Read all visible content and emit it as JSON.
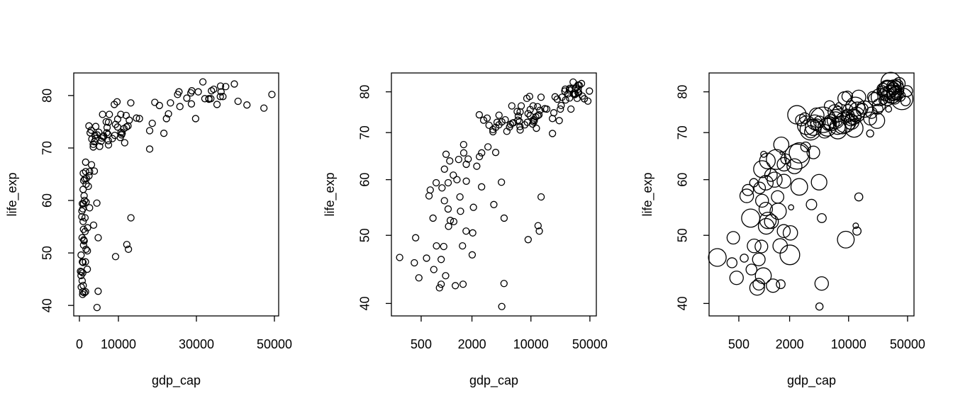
{
  "chart_data": [
    {
      "type": "scatter",
      "x_label": "gdp_cap",
      "y_label": "life_exp",
      "x_scale": "linear",
      "y_scale": "linear",
      "color": "#000000",
      "xlim": [
        -1455,
        51091
      ],
      "ylim": [
        38.0,
        84.3
      ],
      "xticks": [
        0,
        10000,
        30000,
        50000
      ],
      "yticks": [
        40,
        50,
        60,
        70,
        80
      ],
      "x": [
        975,
        5937,
        6223,
        4797,
        12779,
        34435,
        36126,
        29796,
        1391,
        33693,
        1441,
        3822,
        7446,
        12570,
        9066,
        10681,
        1217,
        430,
        1714,
        2042,
        36319,
        706,
        1704,
        13172,
        4959,
        7007,
        986,
        278,
        3633,
        9645,
        1545,
        14619,
        8948,
        22833,
        35278,
        2082,
        6025,
        6873,
        5581,
        5728,
        12154,
        641,
        691,
        33207,
        30470,
        13206,
        753,
        32170,
        1328,
        27538,
        5186,
        943,
        579,
        1202,
        3548,
        39725,
        18009,
        36181,
        2452,
        3541,
        11606,
        4471,
        40676,
        25523,
        28570,
        7321,
        31656,
        4519,
        1463,
        1593,
        23348,
        47307,
        10461,
        1569,
        415,
        12057,
        1045,
        759,
        12452,
        1043,
        1803,
        10957,
        11978,
        3096,
        9254,
        3820,
        824,
        944,
        4811,
        1091,
        36798,
        25185,
        2749,
        620,
        2014,
        49357,
        22316,
        2606,
        9809,
        4173,
        7409,
        3190,
        15390,
        20510,
        19329,
        7670,
        10808,
        863,
        1598,
        21655,
        1712,
        9787,
        863,
        18678,
        25768,
        926,
        9270,
        28821,
        3970,
        2602,
        4513,
        33860,
        37506,
        4185,
        28718,
        1107,
        7458,
        883,
        18009,
        7093,
        8458,
        1056,
        33203,
        42952,
        10611,
        11416,
        2442,
        3025,
        2281,
        1271,
        470
      ],
      "values": [
        43.8,
        76.4,
        72.3,
        42.7,
        75.3,
        81.2,
        79.8,
        75.6,
        64.1,
        79.4,
        56.7,
        65.6,
        74.9,
        50.7,
        72.4,
        73.0,
        52.3,
        49.6,
        59.7,
        50.4,
        80.7,
        44.7,
        50.7,
        78.6,
        73.0,
        72.9,
        65.2,
        46.5,
        55.3,
        78.8,
        48.3,
        75.7,
        78.3,
        76.5,
        78.3,
        54.8,
        72.2,
        75.0,
        71.3,
        71.9,
        51.6,
        58.0,
        52.9,
        79.3,
        80.7,
        56.7,
        59.4,
        79.4,
        60.0,
        79.5,
        70.3,
        56.0,
        46.4,
        60.9,
        70.2,
        82.2,
        73.3,
        81.8,
        64.7,
        70.7,
        71.0,
        59.5,
        78.9,
        80.7,
        80.5,
        72.6,
        82.6,
        72.5,
        54.1,
        67.3,
        78.6,
        77.6,
        72.0,
        42.6,
        45.7,
        74.0,
        59.4,
        48.3,
        74.2,
        54.5,
        64.2,
        72.8,
        76.2,
        66.8,
        74.5,
        71.2,
        42.1,
        62.1,
        52.9,
        63.8,
        79.8,
        80.2,
        72.9,
        56.9,
        46.9,
        80.2,
        75.6,
        65.5,
        75.5,
        71.8,
        71.4,
        71.7,
        75.6,
        78.1,
        78.7,
        76.4,
        72.5,
        46.2,
        65.5,
        72.8,
        63.1,
        74.0,
        42.6,
        74.7,
        77.9,
        48.2,
        49.3,
        80.9,
        72.4,
        58.6,
        39.6,
        80.9,
        81.7,
        74.1,
        78.4,
        52.5,
        70.6,
        58.4,
        69.8,
        73.9,
        71.8,
        51.5,
        79.4,
        78.2,
        76.4,
        73.7,
        74.2,
        73.4,
        62.7,
        42.4,
        43.5
      ]
    },
    {
      "type": "scatter",
      "x_label": "gdp_cap",
      "y_label": "life_exp",
      "x_scale": "log",
      "y_scale": "log",
      "color": "#000000",
      "xlim": [
        222,
        59600
      ],
      "ylim": [
        38.4,
        85.1
      ],
      "xticks": [
        500,
        2000,
        10000,
        50000
      ],
      "yticks": [
        40,
        50,
        60,
        70,
        80
      ],
      "x": [
        975,
        5937,
        6223,
        4797,
        12779,
        34435,
        36126,
        29796,
        1391,
        33693,
        1441,
        3822,
        7446,
        12570,
        9066,
        10681,
        1217,
        430,
        1714,
        2042,
        36319,
        706,
        1704,
        13172,
        4959,
        7007,
        986,
        278,
        3633,
        9645,
        1545,
        14619,
        8948,
        22833,
        35278,
        2082,
        6025,
        6873,
        5581,
        5728,
        12154,
        641,
        691,
        33207,
        30470,
        13206,
        753,
        32170,
        1328,
        27538,
        5186,
        943,
        579,
        1202,
        3548,
        39725,
        18009,
        36181,
        2452,
        3541,
        11606,
        4471,
        40676,
        25523,
        28570,
        7321,
        31656,
        4519,
        1463,
        1593,
        23348,
        47307,
        10461,
        1569,
        415,
        12057,
        1045,
        759,
        12452,
        1043,
        1803,
        10957,
        11978,
        3096,
        9254,
        3820,
        824,
        944,
        4811,
        1091,
        36798,
        25185,
        2749,
        620,
        2014,
        49357,
        22316,
        2606,
        9809,
        4173,
        7409,
        3190,
        15390,
        20510,
        19329,
        7670,
        10808,
        863,
        1598,
        21655,
        1712,
        9787,
        863,
        18678,
        25768,
        926,
        9270,
        28821,
        3970,
        2602,
        4513,
        33860,
        37506,
        4185,
        28718,
        1107,
        7458,
        883,
        18009,
        7093,
        8458,
        1056,
        33203,
        42952,
        10611,
        11416,
        2442,
        3025,
        2281,
        1271,
        470
      ],
      "values": [
        43.8,
        76.4,
        72.3,
        42.7,
        75.3,
        81.2,
        79.8,
        75.6,
        64.1,
        79.4,
        56.7,
        65.6,
        74.9,
        50.7,
        72.4,
        73.0,
        52.3,
        49.6,
        59.7,
        50.4,
        80.7,
        44.7,
        50.7,
        78.6,
        73.0,
        72.9,
        65.2,
        46.5,
        55.3,
        78.8,
        48.3,
        75.7,
        78.3,
        76.5,
        78.3,
        54.8,
        72.2,
        75.0,
        71.3,
        71.9,
        51.6,
        58.0,
        52.9,
        79.3,
        80.7,
        56.7,
        59.4,
        79.4,
        60.0,
        79.5,
        70.3,
        56.0,
        46.4,
        60.9,
        70.2,
        82.2,
        73.3,
        81.8,
        64.7,
        70.7,
        71.0,
        59.5,
        78.9,
        80.7,
        80.5,
        72.6,
        82.6,
        72.5,
        54.1,
        67.3,
        78.6,
        77.6,
        72.0,
        42.6,
        45.7,
        74.0,
        59.4,
        48.3,
        74.2,
        54.5,
        64.2,
        72.8,
        76.2,
        66.8,
        74.5,
        71.2,
        42.1,
        62.1,
        52.9,
        63.8,
        79.8,
        80.2,
        72.9,
        56.9,
        46.9,
        80.2,
        75.6,
        65.5,
        75.5,
        71.8,
        71.4,
        71.7,
        75.6,
        78.1,
        78.7,
        76.4,
        72.5,
        46.2,
        65.5,
        72.8,
        63.1,
        74.0,
        42.6,
        74.7,
        77.9,
        48.2,
        49.3,
        80.9,
        72.4,
        58.6,
        39.6,
        80.9,
        81.7,
        74.1,
        78.4,
        52.5,
        70.6,
        58.4,
        69.8,
        73.9,
        71.8,
        51.5,
        79.4,
        78.2,
        76.4,
        73.7,
        74.2,
        73.4,
        62.7,
        42.4,
        43.5
      ]
    },
    {
      "type": "bubble",
      "x_label": "gdp_cap",
      "y_label": "life_exp",
      "x_scale": "log",
      "y_scale": "log",
      "color": "#000000",
      "xlim": [
        222,
        59600
      ],
      "ylim": [
        38.4,
        85.1
      ],
      "xticks": [
        500,
        2000,
        10000,
        50000
      ],
      "yticks": [
        40,
        50,
        60,
        70,
        80
      ],
      "x": [
        975,
        5937,
        6223,
        4797,
        12779,
        34435,
        36126,
        29796,
        1391,
        33693,
        1441,
        3822,
        7446,
        12570,
        9066,
        10681,
        1217,
        430,
        1714,
        2042,
        36319,
        706,
        1704,
        13172,
        4959,
        7007,
        986,
        278,
        3633,
        9645,
        1545,
        14619,
        8948,
        22833,
        35278,
        2082,
        6025,
        6873,
        5581,
        5728,
        12154,
        641,
        691,
        33207,
        30470,
        13206,
        753,
        32170,
        1328,
        27538,
        5186,
        943,
        579,
        1202,
        3548,
        39725,
        18009,
        36181,
        2452,
        3541,
        11606,
        4471,
        40676,
        25523,
        28570,
        7321,
        31656,
        4519,
        1463,
        1593,
        23348,
        47307,
        10461,
        1569,
        415,
        12057,
        1045,
        759,
        12452,
        1043,
        1803,
        10957,
        11978,
        3096,
        9254,
        3820,
        824,
        944,
        4811,
        1091,
        36798,
        25185,
        2749,
        620,
        2014,
        49357,
        22316,
        2606,
        9809,
        4173,
        7409,
        3190,
        15390,
        20510,
        19329,
        7670,
        10808,
        863,
        1598,
        21655,
        1712,
        9787,
        863,
        18678,
        25768,
        926,
        9270,
        28821,
        3970,
        2602,
        4513,
        33860,
        37506,
        4185,
        28718,
        1107,
        7458,
        883,
        18009,
        7093,
        8458,
        1056,
        33203,
        42952,
        10611,
        11416,
        2442,
        3025,
        2281,
        1271,
        470
      ],
      "values": [
        43.8,
        76.4,
        72.3,
        42.7,
        75.3,
        81.2,
        79.8,
        75.6,
        64.1,
        79.4,
        56.7,
        65.6,
        74.9,
        50.7,
        72.4,
        73.0,
        52.3,
        49.6,
        59.7,
        50.4,
        80.7,
        44.7,
        50.7,
        78.6,
        73.0,
        72.9,
        65.2,
        46.5,
        55.3,
        78.8,
        48.3,
        75.7,
        78.3,
        76.5,
        78.3,
        54.8,
        72.2,
        75.0,
        71.3,
        71.9,
        51.6,
        58.0,
        52.9,
        79.3,
        80.7,
        56.7,
        59.4,
        79.4,
        60.0,
        79.5,
        70.3,
        56.0,
        46.4,
        60.9,
        70.2,
        82.2,
        73.3,
        81.8,
        64.7,
        70.7,
        71.0,
        59.5,
        78.9,
        80.7,
        80.5,
        72.6,
        82.6,
        72.5,
        54.1,
        67.3,
        78.6,
        77.6,
        72.0,
        42.6,
        45.7,
        74.0,
        59.4,
        48.3,
        74.2,
        54.5,
        64.2,
        72.8,
        76.2,
        66.8,
        74.5,
        71.2,
        42.1,
        62.1,
        52.9,
        63.8,
        79.8,
        80.2,
        72.9,
        56.9,
        46.9,
        80.2,
        75.6,
        65.5,
        75.5,
        71.8,
        71.4,
        71.7,
        75.6,
        78.1,
        78.7,
        76.4,
        72.5,
        46.2,
        65.5,
        72.8,
        63.1,
        74.0,
        42.6,
        74.7,
        77.9,
        48.2,
        49.3,
        80.9,
        72.4,
        58.6,
        39.6,
        80.9,
        81.7,
        74.1,
        78.4,
        52.5,
        70.6,
        58.4,
        69.8,
        73.9,
        71.8,
        51.5,
        79.4,
        78.2,
        76.4,
        73.7,
        74.2,
        73.4,
        62.7,
        42.4,
        43.5
      ],
      "sizes": [
        31.9,
        3.6,
        33.3,
        12.4,
        40.3,
        20.4,
        8.2,
        0.7,
        150.4,
        10.4,
        8.1,
        9.1,
        4.6,
        1.6,
        190,
        7.3,
        14.3,
        8.4,
        14.1,
        17.7,
        33.4,
        4.4,
        10.2,
        16.3,
        1318.7,
        44.2,
        0.7,
        64.6,
        3.8,
        4.1,
        18.0,
        4.5,
        11.4,
        10.2,
        5.5,
        0.5,
        9.3,
        13.8,
        80.3,
        6.9,
        0.55,
        4.9,
        76.5,
        5.2,
        61.1,
        1.5,
        1.7,
        82.4,
        22.9,
        10.7,
        12.6,
        9.9,
        1.5,
        8.5,
        7.5,
        6.98,
        9.96,
        0.3,
        1110,
        223.5,
        69.5,
        27.5,
        4.1,
        6.4,
        58.1,
        2.8,
        127.5,
        6.1,
        35.6,
        23.3,
        49.0,
        2.5,
        3.9,
        2.0,
        3.2,
        6.0,
        19.2,
        13.3,
        24.8,
        12.0,
        3.3,
        1.25,
        108.7,
        2.9,
        0.68,
        33.8,
        20.0,
        47.8,
        2.1,
        28.9,
        16.6,
        4.1,
        5.7,
        12.9,
        135.0,
        4.6,
        3.2,
        169.3,
        3.2,
        6.7,
        28.7,
        91.1,
        38.5,
        10.6,
        3.9,
        0.8,
        22.3,
        8.9,
        0.2,
        27.6,
        12.3,
        10.2,
        6.1,
        5.4,
        2.0,
        9.1,
        44.0,
        40.4,
        20.4,
        42.3,
        1.1,
        9.0,
        7.55,
        19.3,
        23.2,
        38.1,
        65.1,
        5.7,
        1.06,
        10.3,
        71.2,
        29.2,
        60.8,
        301.1,
        3.4,
        26.1,
        85.3,
        4.0,
        22.2,
        11.7,
        12.3
      ]
    }
  ]
}
